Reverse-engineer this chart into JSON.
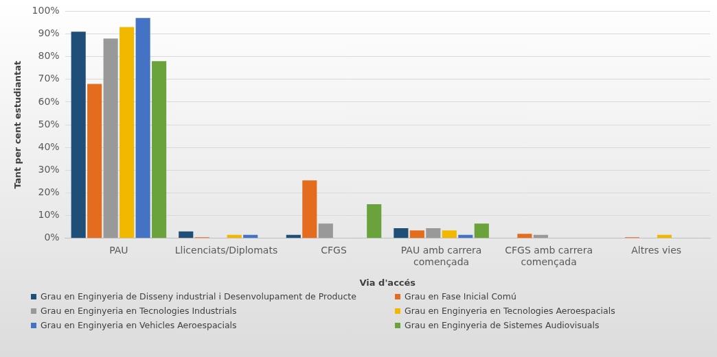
{
  "chart_data": {
    "type": "bar",
    "xlabel": "Via d'accés",
    "ylabel": "Tant per cent estudiantat",
    "categories": [
      "PAU",
      "Llicenciats/Diplomats",
      "CFGS",
      "PAU amb carrera començada",
      "CFGS amb carrera començada",
      "Altres vies"
    ],
    "series": [
      {
        "name": "Grau en Enginyeria de Disseny industrial i Desenvolupament de Producte",
        "color": "#1f4e79",
        "values": [
          91,
          3,
          1.5,
          4.5,
          0,
          0
        ]
      },
      {
        "name": "Grau en Fase Inicial Comú",
        "color": "#e46c1f",
        "values": [
          68,
          0.5,
          25.5,
          3.5,
          2,
          0.5
        ]
      },
      {
        "name": "Grau en Enginyeria en Tecnologies Industrials",
        "color": "#999999",
        "values": [
          88,
          0,
          6.5,
          4.5,
          1.5,
          0
        ]
      },
      {
        "name": "Grau en Enginyeria en Tecnologies Aeroespacials",
        "color": "#f2b800",
        "values": [
          93,
          1.5,
          0,
          3.5,
          0,
          1.5
        ]
      },
      {
        "name": "Grau en Enginyeria en Vehicles Aeroespacials",
        "color": "#4472c4",
        "values": [
          97,
          1.5,
          0,
          1.5,
          0,
          0
        ]
      },
      {
        "name": "Grau en Enginyeria de Sistemes Audiovisuals",
        "color": "#6aa23c",
        "values": [
          78,
          0,
          15,
          6.5,
          0,
          0
        ]
      }
    ],
    "ylim": [
      0,
      100
    ],
    "yticks": [
      {
        "value": 0,
        "label": "0%"
      },
      {
        "value": 10,
        "label": "10%"
      },
      {
        "value": 20,
        "label": "20%"
      },
      {
        "value": 30,
        "label": "30%"
      },
      {
        "value": 40,
        "label": "40%"
      },
      {
        "value": 50,
        "label": "50%"
      },
      {
        "value": 60,
        "label": "60%"
      },
      {
        "value": 70,
        "label": "70%"
      },
      {
        "value": 80,
        "label": "80%"
      },
      {
        "value": 90,
        "label": "90%"
      },
      {
        "value": 100,
        "label": "100%"
      }
    ],
    "grid": "y",
    "legend": "bottom"
  }
}
